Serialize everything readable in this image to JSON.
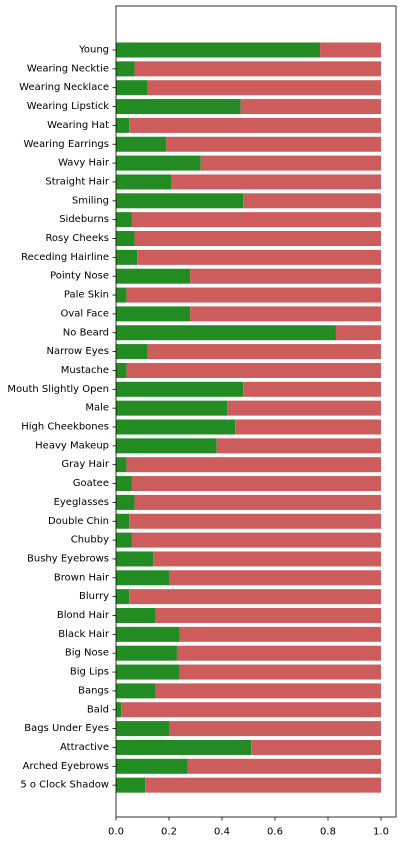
{
  "chart_data": {
    "type": "bar",
    "orientation": "horizontal",
    "stacked": true,
    "title": "",
    "xlabel": "",
    "ylabel": "",
    "xlim": [
      0,
      1.05
    ],
    "xticks": [
      "0.0",
      "0.2",
      "0.4",
      "0.6",
      "0.8",
      "1.0"
    ],
    "grid": false,
    "legend": "none",
    "categories": [
      "Young",
      "Wearing Necktie",
      "Wearing Necklace",
      "Wearing Lipstick",
      "Wearing Hat",
      "Wearing Earrings",
      "Wavy Hair",
      "Straight Hair",
      "Smiling",
      "Sideburns",
      "Rosy Cheeks",
      "Receding Hairline",
      "Pointy Nose",
      "Pale Skin",
      "Oval Face",
      "No Beard",
      "Narrow Eyes",
      "Mustache",
      "Mouth Slightly Open",
      "Male",
      "High Cheekbones",
      "Heavy Makeup",
      "Gray Hair",
      "Goatee",
      "Eyeglasses",
      "Double Chin",
      "Chubby",
      "Bushy Eyebrows",
      "Brown Hair",
      "Blurry",
      "Blond Hair",
      "Black Hair",
      "Big Nose",
      "Big Lips",
      "Bangs",
      "Bald",
      "Bags Under Eyes",
      "Attractive",
      "Arched Eyebrows",
      "5 o Clock Shadow"
    ],
    "series": [
      {
        "values": [
          0.77,
          0.07,
          0.12,
          0.47,
          0.05,
          0.19,
          0.32,
          0.21,
          0.48,
          0.06,
          0.07,
          0.08,
          0.28,
          0.04,
          0.28,
          0.83,
          0.12,
          0.04,
          0.48,
          0.42,
          0.45,
          0.38,
          0.04,
          0.06,
          0.07,
          0.05,
          0.06,
          0.14,
          0.2,
          0.05,
          0.15,
          0.24,
          0.23,
          0.24,
          0.15,
          0.02,
          0.2,
          0.51,
          0.27,
          0.11
        ]
      },
      {
        "values": [
          0.23,
          0.93,
          0.88,
          0.53,
          0.95,
          0.81,
          0.68,
          0.79,
          0.52,
          0.94,
          0.93,
          0.92,
          0.72,
          0.96,
          0.72,
          0.17,
          0.88,
          0.96,
          0.52,
          0.58,
          0.55,
          0.62,
          0.96,
          0.94,
          0.93,
          0.95,
          0.94,
          0.86,
          0.8,
          0.95,
          0.85,
          0.76,
          0.77,
          0.76,
          0.85,
          0.98,
          0.8,
          0.49,
          0.73,
          0.89
        ]
      }
    ],
    "colors": [
      "#228b22",
      "#cd5c5c"
    ]
  }
}
